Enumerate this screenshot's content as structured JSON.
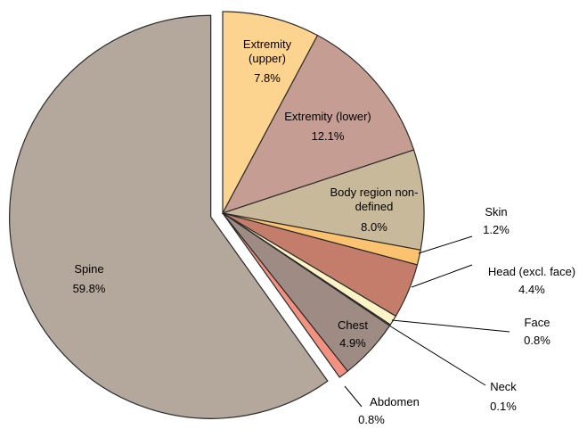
{
  "chart_data": {
    "type": "pie",
    "categories": [
      "Extremity (upper)",
      "Extremity (lower)",
      "Body region non-defined",
      "Skin",
      "Head (excl. face)",
      "Face",
      "Neck",
      "Chest",
      "Abdomen",
      "Spine"
    ],
    "values": [
      7.8,
      12.1,
      8.0,
      1.2,
      4.4,
      0.8,
      0.1,
      4.9,
      0.8,
      59.8
    ],
    "value_labels": [
      "7.8%",
      "12.1%",
      "8.0%",
      "1.2%",
      "4.4%",
      "0.8%",
      "0.1%",
      "4.9%",
      "0.8%",
      "59.8%"
    ],
    "colors": [
      "#fdd48f",
      "#c59d93",
      "#c9b99b",
      "#fbc26f",
      "#c57d6b",
      "#fdf3c6",
      "#b9aa9c",
      "#9e8c84",
      "#f2917f",
      "#b4a89d"
    ],
    "exploded": "Spine"
  }
}
